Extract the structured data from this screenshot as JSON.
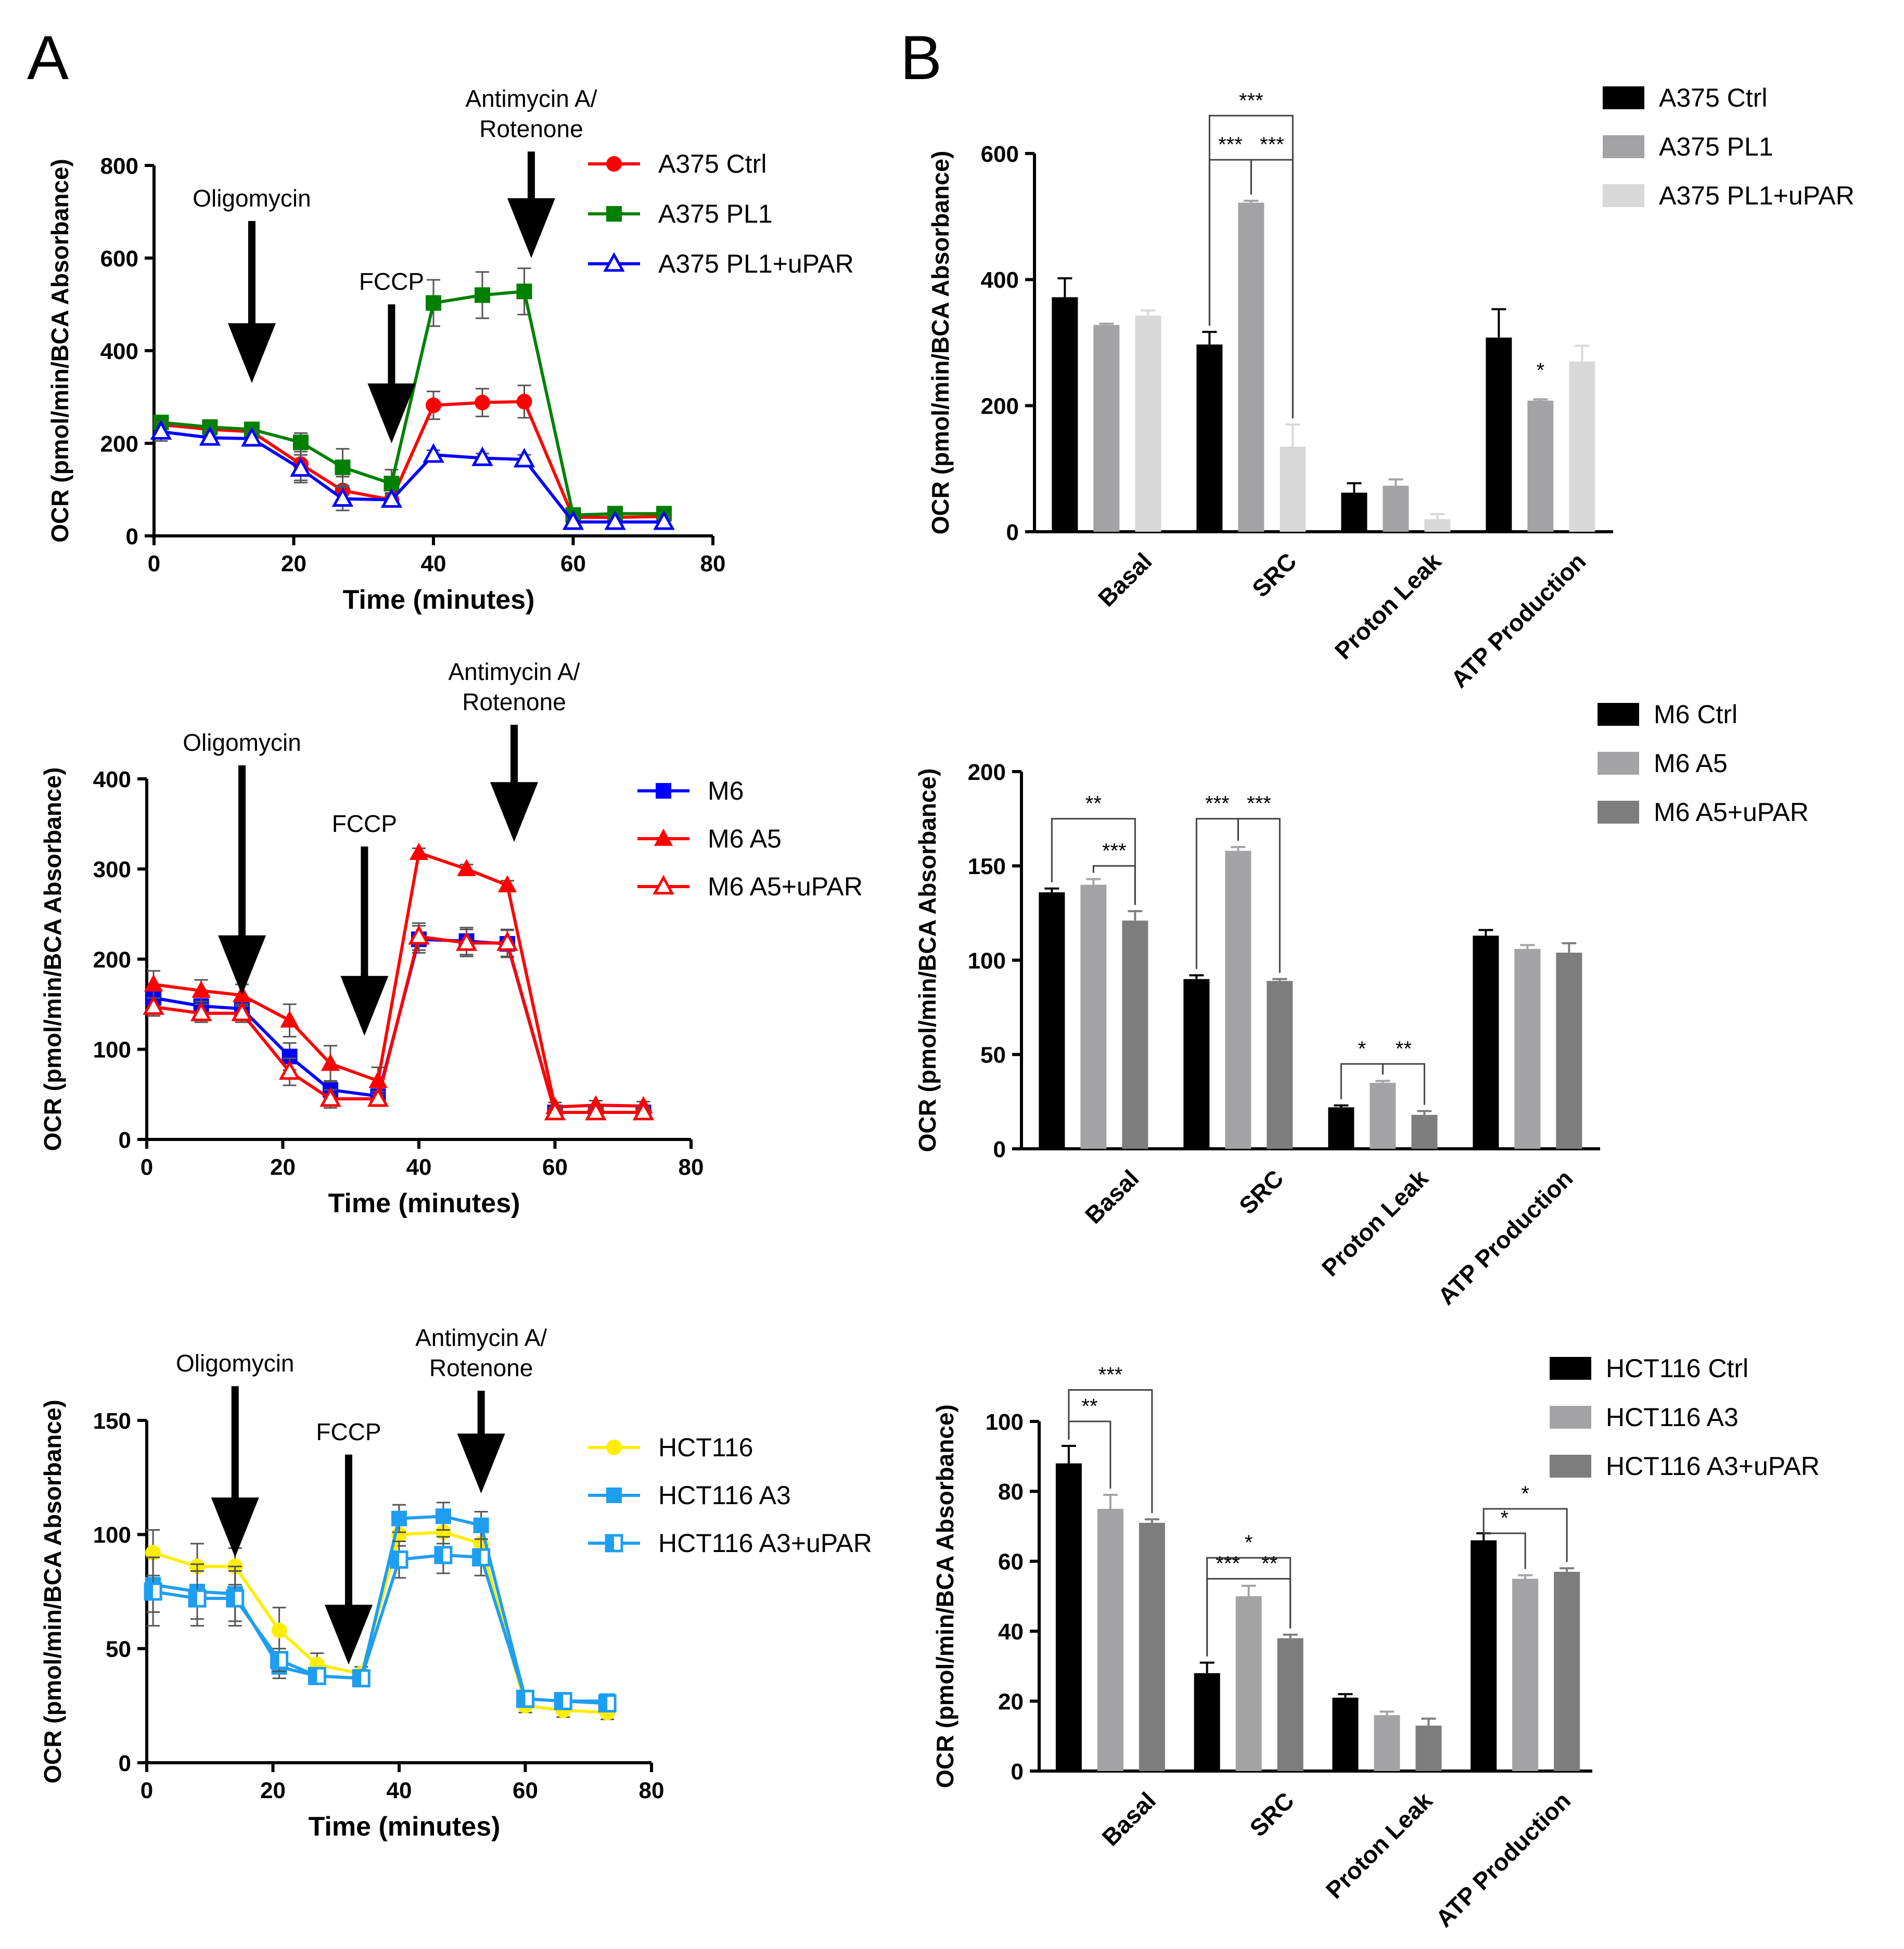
{
  "panel_labels": {
    "a": "A",
    "b": "B"
  },
  "chart_data": [
    {
      "id": "a1",
      "type": "line",
      "x": [
        1,
        8,
        14,
        21,
        27,
        34,
        40,
        47,
        53,
        60,
        66,
        73
      ],
      "xlim": [
        0,
        80
      ],
      "ylim": [
        0,
        800
      ],
      "xticks": [
        0,
        20,
        40,
        60,
        80
      ],
      "yticks": [
        0,
        200,
        400,
        600,
        800
      ],
      "xlabel": "Time (minutes)",
      "ylabel": "OCR (pmol/min/BCA Absorbance)",
      "legend_position": "top-right",
      "annotations": [
        {
          "lines": [
            "Oligomycin"
          ],
          "x": 14,
          "y_top": 680,
          "y_tip": 330
        },
        {
          "lines": [
            "FCCP"
          ],
          "x": 34,
          "y_top": 500,
          "y_tip": 200
        },
        {
          "lines": [
            "Antimycin A/",
            "Rotenone"
          ],
          "x": 54,
          "y_top": 830,
          "y_tip": 600
        }
      ],
      "series": [
        {
          "name": "A375 Ctrl",
          "color": "#ff0000",
          "marker": "circle",
          "values": [
            240,
            230,
            225,
            155,
            98,
            78,
            282,
            288,
            290,
            40,
            40,
            42
          ],
          "errors": [
            15,
            12,
            15,
            35,
            30,
            15,
            30,
            30,
            35,
            10,
            10,
            10
          ]
        },
        {
          "name": "A375 PL1",
          "color": "#008000",
          "marker": "square",
          "values": [
            245,
            235,
            230,
            202,
            148,
            113,
            503,
            520,
            528,
            45,
            48,
            48
          ],
          "errors": [
            15,
            12,
            12,
            20,
            40,
            30,
            50,
            50,
            50,
            10,
            10,
            10
          ]
        },
        {
          "name": "A375 PL1+uPAR",
          "color": "#0000ff",
          "marker": "triangle-open",
          "values": [
            225,
            212,
            210,
            145,
            80,
            78,
            175,
            168,
            165,
            30,
            30,
            30
          ],
          "errors": [
            20,
            15,
            15,
            30,
            25,
            12,
            10,
            10,
            10,
            10,
            10,
            10
          ]
        }
      ]
    },
    {
      "id": "a2",
      "type": "line",
      "x": [
        1,
        8,
        14,
        21,
        27,
        34,
        40,
        47,
        53,
        60,
        66,
        73
      ],
      "xlim": [
        0,
        80
      ],
      "ylim": [
        0,
        400
      ],
      "xticks": [
        0,
        20,
        40,
        60,
        80
      ],
      "yticks": [
        0,
        100,
        200,
        300,
        400
      ],
      "xlabel": "Time (minutes)",
      "ylabel": "OCR (pmol/min/BCA Absorbance)",
      "legend_position": "top-right",
      "annotations": [
        {
          "lines": [
            "Oligomycin"
          ],
          "x": 14,
          "y_top": 415,
          "y_tip": 160
        },
        {
          "lines": [
            "FCCP"
          ],
          "x": 32,
          "y_top": 325,
          "y_tip": 115
        },
        {
          "lines": [
            "Antimycin A/",
            "Rotenone"
          ],
          "x": 54,
          "y_top": 460,
          "y_tip": 330
        }
      ],
      "series": [
        {
          "name": "M6",
          "color": "#0000ff",
          "marker": "square",
          "values": [
            157,
            148,
            145,
            92,
            55,
            48,
            222,
            220,
            217,
            30,
            30,
            30
          ],
          "errors": [
            10,
            12,
            10,
            15,
            10,
            8,
            15,
            15,
            15,
            5,
            5,
            5
          ]
        },
        {
          "name": "M6 A5",
          "color": "#ff0000",
          "marker": "triangle",
          "values": [
            172,
            165,
            160,
            132,
            84,
            65,
            318,
            300,
            282,
            36,
            38,
            37
          ],
          "errors": [
            15,
            12,
            12,
            18,
            20,
            15,
            5,
            5,
            5,
            5,
            5,
            5
          ]
        },
        {
          "name": "M6 A5+uPAR",
          "color": "#ff0000",
          "marker": "triangle-open",
          "values": [
            147,
            140,
            140,
            75,
            45,
            45,
            225,
            218,
            218,
            30,
            30,
            30
          ],
          "errors": [
            10,
            10,
            10,
            15,
            10,
            8,
            15,
            15,
            15,
            5,
            5,
            5
          ]
        }
      ]
    },
    {
      "id": "a3",
      "type": "line",
      "x": [
        1,
        8,
        14,
        21,
        27,
        34,
        40,
        47,
        53,
        60,
        66,
        73
      ],
      "xlim": [
        0,
        80
      ],
      "ylim": [
        0,
        150
      ],
      "xticks": [
        0,
        20,
        40,
        60,
        80
      ],
      "yticks": [
        0,
        50,
        100,
        150
      ],
      "xlabel": "Time (minutes)",
      "ylabel": "OCR (pmol/min/BCA Absorbance)",
      "legend_position": "top-right",
      "annotations": [
        {
          "lines": [
            "Oligomycin"
          ],
          "x": 14,
          "y_top": 165,
          "y_tip": 90
        },
        {
          "lines": [
            "FCCP"
          ],
          "x": 32,
          "y_top": 135,
          "y_tip": 43
        },
        {
          "lines": [
            "Antimycin A/",
            "Rotenone"
          ],
          "x": 53,
          "y_top": 163,
          "y_tip": 118
        }
      ],
      "series": [
        {
          "name": "HCT116",
          "color": "#ffee00",
          "marker": "circle",
          "values": [
            92,
            86,
            86,
            58,
            43,
            39,
            100,
            101,
            96,
            25,
            23,
            22
          ],
          "errors": [
            10,
            10,
            8,
            10,
            5,
            3,
            5,
            5,
            5,
            3,
            3,
            3
          ]
        },
        {
          "name": "HCT116 A3",
          "color": "#1e9ef0",
          "marker": "square",
          "values": [
            78,
            75,
            74,
            42,
            38,
            37,
            107,
            108,
            104,
            28,
            27,
            27
          ],
          "errors": [
            12,
            12,
            12,
            5,
            3,
            3,
            6,
            6,
            6,
            3,
            3,
            3
          ]
        },
        {
          "name": "HCT116 A3+uPAR",
          "color": "#1e9ef0",
          "marker": "square-half",
          "values": [
            75,
            72,
            72,
            45,
            38,
            37,
            89,
            91,
            90,
            28,
            27,
            26
          ],
          "errors": [
            15,
            12,
            12,
            5,
            3,
            3,
            8,
            8,
            8,
            3,
            3,
            3
          ]
        }
      ]
    },
    {
      "id": "b1",
      "type": "bar",
      "categories": [
        "Basal",
        "SRC",
        "Proton Leak",
        "ATP Production"
      ],
      "ylim": [
        0,
        600
      ],
      "yticks": [
        0,
        200,
        400,
        600
      ],
      "ylabel": "OCR (pmol/min/BCA Absorbance)",
      "legend_position": "top-right",
      "series": [
        {
          "name": "A375 Ctrl",
          "color": "#000000",
          "values": [
            372,
            297,
            62,
            308
          ],
          "errors": [
            30,
            20,
            15,
            45
          ]
        },
        {
          "name": "A375 PL1",
          "color": "#a3a3a6",
          "values": [
            328,
            522,
            73,
            208
          ],
          "errors": [
            2,
            3,
            10,
            2
          ]
        },
        {
          "name": "A375 PL1+uPAR",
          "color": "#d8d8d8",
          "values": [
            343,
            135,
            20,
            270
          ],
          "errors": [
            8,
            35,
            8,
            25
          ]
        }
      ],
      "annotations": [
        {
          "text": "***",
          "cat": 1,
          "from": 0,
          "to": 2,
          "y": 660
        },
        {
          "text": "***",
          "cat": 1,
          "from": 0,
          "to": 1,
          "y": 590
        },
        {
          "text": "***",
          "cat": 1,
          "from": 1,
          "to": 2,
          "y": 590
        },
        {
          "text": "*",
          "cat": 3,
          "over": 1,
          "y": 245
        }
      ]
    },
    {
      "id": "b2",
      "type": "bar",
      "categories": [
        "Basal",
        "SRC",
        "Proton Leak",
        "ATP Production"
      ],
      "ylim": [
        0,
        200
      ],
      "yticks": [
        0,
        50,
        100,
        150,
        200
      ],
      "ylabel": "OCR (pmol/min/BCA Absorbance)",
      "legend_position": "top-right",
      "series": [
        {
          "name": "M6 Ctrl",
          "color": "#000000",
          "values": [
            136,
            90,
            22,
            113
          ],
          "errors": [
            2,
            2,
            1,
            3
          ]
        },
        {
          "name": "M6 A5",
          "color": "#a3a3a6",
          "values": [
            140,
            158,
            35,
            106
          ],
          "errors": [
            3,
            2,
            1,
            2
          ]
        },
        {
          "name": "M6 A5+uPAR",
          "color": "#7d7d7d",
          "values": [
            121,
            89,
            18,
            104
          ],
          "errors": [
            5,
            1,
            2,
            5
          ]
        }
      ],
      "annotations": [
        {
          "text": "**",
          "cat": 0,
          "from": 0,
          "to": 2,
          "y": 175
        },
        {
          "text": "***",
          "cat": 0,
          "from": 1,
          "to": 2,
          "y": 150
        },
        {
          "text": "***",
          "cat": 1,
          "from": 0,
          "to": 1,
          "y": 175
        },
        {
          "text": "***",
          "cat": 1,
          "from": 1,
          "to": 2,
          "y": 175
        },
        {
          "text": "*",
          "cat": 2,
          "from": 0,
          "to": 1,
          "y": 45
        },
        {
          "text": "**",
          "cat": 2,
          "from": 1,
          "to": 2,
          "y": 45
        }
      ]
    },
    {
      "id": "b3",
      "type": "bar",
      "categories": [
        "Basal",
        "SRC",
        "Proton Leak",
        "ATP Production"
      ],
      "ylim": [
        0,
        100
      ],
      "yticks": [
        0,
        20,
        40,
        60,
        80,
        100
      ],
      "ylabel": "OCR (pmol/min/BCA Absorbance)",
      "legend_position": "top-right",
      "series": [
        {
          "name": "HCT116 Ctrl",
          "color": "#000000",
          "values": [
            88,
            28,
            21,
            66
          ],
          "errors": [
            5,
            3,
            1,
            2
          ]
        },
        {
          "name": "HCT116 A3",
          "color": "#a3a3a6",
          "values": [
            75,
            50,
            16,
            55
          ],
          "errors": [
            4,
            3,
            1,
            1
          ]
        },
        {
          "name": "HCT116 A3+uPAR",
          "color": "#7d7d7d",
          "values": [
            71,
            38,
            13,
            57
          ],
          "errors": [
            1,
            1,
            2,
            1
          ]
        }
      ],
      "annotations": [
        {
          "text": "***",
          "cat": 0,
          "from": 0,
          "to": 2,
          "y": 109
        },
        {
          "text": "**",
          "cat": 0,
          "from": 0,
          "to": 1,
          "y": 100
        },
        {
          "text": "*",
          "cat": 1,
          "from": 0,
          "to": 2,
          "y": 61
        },
        {
          "text": "***",
          "cat": 1,
          "from": 0,
          "to": 1,
          "y": 55
        },
        {
          "text": "**",
          "cat": 1,
          "from": 1,
          "to": 2,
          "y": 55
        },
        {
          "text": "*",
          "cat": 3,
          "from": 0,
          "to": 2,
          "y": 75
        },
        {
          "text": "*",
          "cat": 3,
          "from": 0,
          "to": 1,
          "y": 68
        }
      ]
    }
  ]
}
